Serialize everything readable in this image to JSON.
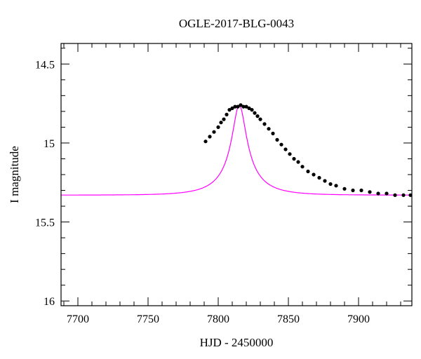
{
  "chart_data": {
    "type": "scatter",
    "title": "OGLE-2017-BLG-0043",
    "xlabel": "HJD - 2450000",
    "ylabel": "I magnitude",
    "xlim": [
      7688,
      7938
    ],
    "ylim": [
      16.03,
      14.37
    ],
    "y_inverted": true,
    "x_ticks": [
      7700,
      7750,
      7800,
      7850,
      7900
    ],
    "y_ticks": [
      14.5,
      15,
      15.5,
      16
    ],
    "x_tick_labels": [
      "7700",
      "7750",
      "7800",
      "7850",
      "7900"
    ],
    "y_tick_labels": [
      "14.5",
      "15",
      "15.5",
      "16"
    ],
    "grid": false,
    "colors": {
      "model": "#ff00ff",
      "points": "#000000",
      "axes": "#000000"
    },
    "series": [
      {
        "type": "line",
        "model": {
          "baseline": 15.33,
          "peak": 14.76,
          "t0": 7815,
          "tE": 26,
          "u0": 0.2
        }
      },
      {
        "type": "scatter",
        "x": [
          7791,
          7794,
          7797,
          7800,
          7802,
          7804,
          7806,
          7808,
          7810,
          7812,
          7814,
          7816,
          7818,
          7820,
          7822,
          7824,
          7826,
          7828,
          7830,
          7833,
          7836,
          7839,
          7842,
          7845,
          7848,
          7851,
          7854,
          7857,
          7860,
          7864,
          7868,
          7872,
          7876,
          7880,
          7884,
          7890,
          7896,
          7902,
          7908,
          7914,
          7920,
          7926,
          7932,
          7937
        ],
        "y": [
          14.99,
          14.96,
          14.93,
          14.9,
          14.87,
          14.85,
          14.82,
          14.79,
          14.78,
          14.77,
          14.77,
          14.76,
          14.77,
          14.77,
          14.78,
          14.79,
          14.81,
          14.83,
          14.85,
          14.88,
          14.91,
          14.94,
          14.98,
          15.01,
          15.04,
          15.07,
          15.1,
          15.12,
          15.15,
          15.18,
          15.2,
          15.22,
          15.24,
          15.26,
          15.27,
          15.29,
          15.3,
          15.3,
          15.31,
          15.32,
          15.32,
          15.33,
          15.33,
          15.33
        ]
      }
    ]
  }
}
